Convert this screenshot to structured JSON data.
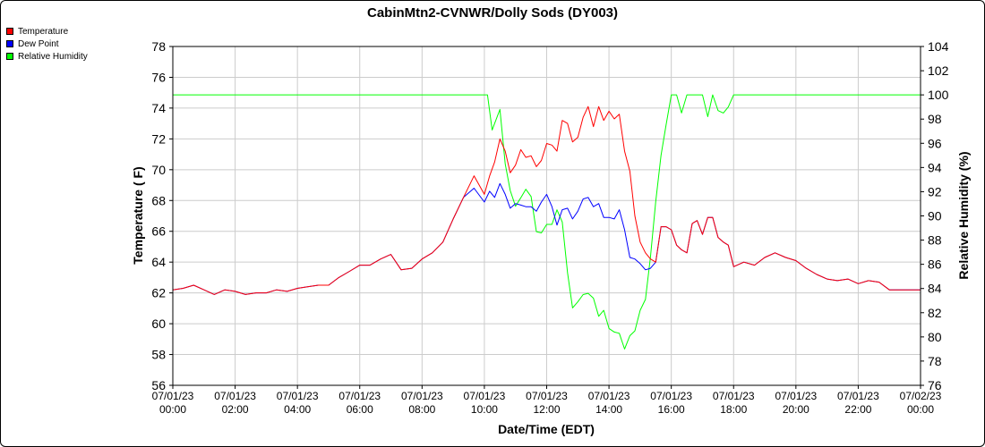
{
  "chart_data": {
    "type": "line",
    "title": "CabinMtn2-CVNWR/Dolly Sods (DY003)",
    "xlabel": "Date/Time (EDT)",
    "ylabel": "Temperature ( F)",
    "y2label": "Relative Humidity (%)",
    "grid": true,
    "legend_position": "top-left",
    "x_tick_labels": [
      [
        "07/01/23",
        "00:00"
      ],
      [
        "07/01/23",
        "02:00"
      ],
      [
        "07/01/23",
        "04:00"
      ],
      [
        "07/01/23",
        "06:00"
      ],
      [
        "07/01/23",
        "08:00"
      ],
      [
        "07/01/23",
        "10:00"
      ],
      [
        "07/01/23",
        "12:00"
      ],
      [
        "07/01/23",
        "14:00"
      ],
      [
        "07/01/23",
        "16:00"
      ],
      [
        "07/01/23",
        "18:00"
      ],
      [
        "07/01/23",
        "20:00"
      ],
      [
        "07/01/23",
        "22:00"
      ],
      [
        "07/02/23",
        "00:00"
      ]
    ],
    "x_range_hours": [
      0,
      24
    ],
    "y_ticks": [
      56,
      58,
      60,
      62,
      64,
      66,
      68,
      70,
      72,
      74,
      76,
      78
    ],
    "ylim": [
      56,
      78
    ],
    "y2_ticks": [
      76,
      78,
      80,
      82,
      84,
      86,
      88,
      90,
      92,
      94,
      96,
      98,
      100,
      102,
      104
    ],
    "y2lim": [
      76,
      104
    ],
    "series": [
      {
        "name": "Temperature",
        "axis": "left",
        "color": "#ff0000",
        "hours": [
          0,
          0.33,
          0.67,
          1,
          1.33,
          1.67,
          2,
          2.33,
          2.67,
          3,
          3.33,
          3.67,
          4,
          4.33,
          4.67,
          5,
          5.33,
          5.67,
          6,
          6.33,
          6.67,
          7,
          7.33,
          7.67,
          8,
          8.33,
          8.67,
          9,
          9.33,
          9.67,
          10,
          10.17,
          10.33,
          10.5,
          10.67,
          10.83,
          11,
          11.17,
          11.33,
          11.5,
          11.67,
          11.83,
          12,
          12.17,
          12.33,
          12.5,
          12.67,
          12.83,
          13,
          13.17,
          13.33,
          13.5,
          13.67,
          13.83,
          14,
          14.17,
          14.33,
          14.5,
          14.67,
          14.83,
          15,
          15.17,
          15.33,
          15.5,
          15.67,
          15.83,
          16,
          16.17,
          16.33,
          16.5,
          16.67,
          16.83,
          17,
          17.17,
          17.33,
          17.5,
          17.67,
          17.83,
          18,
          18.33,
          18.67,
          19,
          19.33,
          19.67,
          20,
          20.33,
          20.67,
          21,
          21.33,
          21.67,
          22,
          22.33,
          22.67,
          23,
          23.33,
          23.67,
          24
        ],
        "values": [
          62.2,
          62.3,
          62.5,
          62.2,
          61.9,
          62.2,
          62.1,
          61.9,
          62.0,
          62.0,
          62.2,
          62.1,
          62.3,
          62.4,
          62.5,
          62.5,
          63.0,
          63.4,
          63.8,
          63.8,
          64.2,
          64.5,
          63.5,
          63.6,
          64.2,
          64.6,
          65.3,
          66.8,
          68.2,
          69.6,
          68.4,
          69.6,
          70.5,
          72.0,
          71.2,
          69.8,
          70.3,
          71.3,
          70.8,
          70.9,
          70.2,
          70.6,
          71.7,
          71.6,
          71.2,
          73.2,
          73.0,
          71.8,
          72.1,
          73.4,
          74.1,
          72.8,
          74.1,
          73.2,
          73.8,
          73.3,
          73.6,
          71.2,
          69.9,
          67.0,
          65.3,
          64.6,
          64.2,
          64.0,
          66.3,
          66.3,
          66.1,
          65.1,
          64.8,
          64.6,
          66.5,
          66.7,
          65.8,
          66.9,
          66.9,
          65.6,
          65.3,
          65.1,
          63.7,
          64.0,
          63.8,
          64.3,
          64.6,
          64.3,
          64.1,
          63.6,
          63.2,
          62.9,
          62.8,
          62.9,
          62.6,
          62.8,
          62.7,
          62.2,
          62.2,
          62.2,
          62.2
        ],
        "line_width": 1
      },
      {
        "name": "Dew Point",
        "axis": "left",
        "color": "#0000ff",
        "hours": [
          0,
          0.33,
          0.67,
          1,
          1.33,
          1.67,
          2,
          2.33,
          2.67,
          3,
          3.33,
          3.67,
          4,
          4.33,
          4.67,
          5,
          5.33,
          5.67,
          6,
          6.33,
          6.67,
          7,
          7.33,
          7.67,
          8,
          8.33,
          8.67,
          9,
          9.33,
          9.67,
          10,
          10.17,
          10.33,
          10.5,
          10.67,
          10.83,
          11,
          11.17,
          11.33,
          11.5,
          11.67,
          11.83,
          12,
          12.17,
          12.33,
          12.5,
          12.67,
          12.83,
          13,
          13.17,
          13.33,
          13.5,
          13.67,
          13.83,
          14,
          14.17,
          14.33,
          14.5,
          14.67,
          14.83,
          15,
          15.17,
          15.33,
          15.5,
          15.67,
          15.83,
          16,
          16.17,
          16.33,
          16.5,
          16.67,
          16.83,
          17,
          17.17,
          17.33,
          17.5,
          17.67,
          17.83,
          18,
          18.33,
          18.67,
          19,
          19.33,
          19.67,
          20,
          20.33,
          20.67,
          21,
          21.33,
          21.67,
          22,
          22.33,
          22.67,
          23,
          23.33,
          23.67,
          24
        ],
        "values": [
          62.2,
          62.3,
          62.5,
          62.2,
          61.9,
          62.2,
          62.1,
          61.9,
          62.0,
          62.0,
          62.2,
          62.1,
          62.3,
          62.4,
          62.5,
          62.5,
          63.0,
          63.4,
          63.8,
          63.8,
          64.2,
          64.5,
          63.5,
          63.6,
          64.2,
          64.6,
          65.3,
          66.8,
          68.2,
          68.8,
          67.9,
          68.6,
          68.2,
          69.1,
          68.4,
          67.5,
          67.8,
          67.7,
          67.6,
          67.6,
          67.3,
          67.9,
          68.4,
          67.6,
          66.4,
          67.4,
          67.5,
          66.8,
          67.3,
          68.1,
          68.2,
          67.6,
          67.8,
          66.9,
          66.9,
          66.8,
          67.4,
          66.1,
          64.3,
          64.2,
          63.9,
          63.5,
          63.6,
          64.0,
          66.3,
          66.3,
          66.1,
          65.1,
          64.8,
          64.6,
          66.5,
          66.7,
          65.8,
          66.9,
          66.9,
          65.6,
          65.3,
          65.1,
          63.7,
          64.0,
          63.8,
          64.3,
          64.6,
          64.3,
          64.1,
          63.6,
          63.2,
          62.9,
          62.8,
          62.9,
          62.6,
          62.8,
          62.7,
          62.2,
          62.2,
          62.2,
          62.2
        ],
        "line_width": 1
      },
      {
        "name": "Relative Humidity",
        "axis": "right",
        "color": "#00ff00",
        "hours": [
          0,
          2,
          4,
          6,
          8,
          9,
          10,
          10.1,
          10.25,
          10.5,
          10.67,
          10.83,
          11,
          11.17,
          11.33,
          11.5,
          11.67,
          11.83,
          12,
          12.17,
          12.33,
          12.5,
          12.67,
          12.83,
          13,
          13.17,
          13.33,
          13.5,
          13.67,
          13.83,
          14,
          14.17,
          14.33,
          14.5,
          14.67,
          14.83,
          15,
          15.17,
          15.33,
          15.5,
          15.67,
          15.83,
          16,
          16.17,
          16.33,
          16.5,
          16.67,
          16.83,
          17,
          17.17,
          17.33,
          17.5,
          17.67,
          17.83,
          18,
          20,
          22,
          24
        ],
        "values": [
          100,
          100,
          100,
          100,
          100,
          100,
          100,
          100,
          97.1,
          98.8,
          94.3,
          92.1,
          90.8,
          91.5,
          92.2,
          91.6,
          88.7,
          88.6,
          89.3,
          89.3,
          90.5,
          89.5,
          85.3,
          82.4,
          82.9,
          83.5,
          83.6,
          83.2,
          81.7,
          82.2,
          80.7,
          80.4,
          80.3,
          79.0,
          80.1,
          80.5,
          82.2,
          83.1,
          86.6,
          91.2,
          95.0,
          97.5,
          100,
          100,
          98.5,
          100,
          100,
          100,
          100,
          98.2,
          100,
          98.7,
          98.5,
          99.0,
          100,
          100,
          100,
          100
        ],
        "line_width": 1
      }
    ]
  }
}
